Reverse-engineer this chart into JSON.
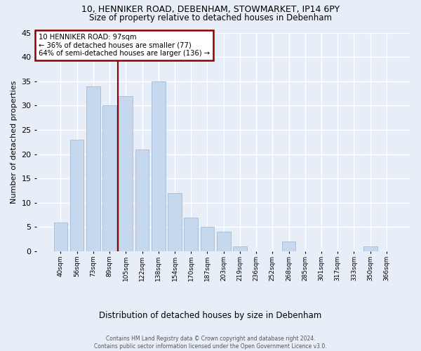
{
  "title1": "10, HENNIKER ROAD, DEBENHAM, STOWMARKET, IP14 6PY",
  "title2": "Size of property relative to detached houses in Debenham",
  "xlabel": "Distribution of detached houses by size in Debenham",
  "ylabel": "Number of detached properties",
  "footer1": "Contains HM Land Registry data © Crown copyright and database right 2024.",
  "footer2": "Contains public sector information licensed under the Open Government Licence v3.0.",
  "categories": [
    "40sqm",
    "56sqm",
    "73sqm",
    "89sqm",
    "105sqm",
    "122sqm",
    "138sqm",
    "154sqm",
    "170sqm",
    "187sqm",
    "203sqm",
    "219sqm",
    "236sqm",
    "252sqm",
    "268sqm",
    "285sqm",
    "301sqm",
    "317sqm",
    "333sqm",
    "350sqm",
    "366sqm"
  ],
  "values": [
    6,
    23,
    34,
    30,
    32,
    21,
    35,
    12,
    7,
    5,
    4,
    1,
    0,
    0,
    2,
    0,
    0,
    0,
    0,
    1,
    0
  ],
  "bar_color": "#c5d8ed",
  "bar_edge_color": "#a0bcd8",
  "vline_color": "#8b0000",
  "vline_position": 3.5,
  "annotation_line1": "10 HENNIKER ROAD: 97sqm",
  "annotation_line2": "← 36% of detached houses are smaller (77)",
  "annotation_line3": "64% of semi-detached houses are larger (136) →",
  "annotation_box_edgecolor": "#8b0000",
  "ylim": [
    0,
    45
  ],
  "yticks": [
    0,
    5,
    10,
    15,
    20,
    25,
    30,
    35,
    40,
    45
  ],
  "background_color": "#e8eef8",
  "grid_color": "#ffffff"
}
